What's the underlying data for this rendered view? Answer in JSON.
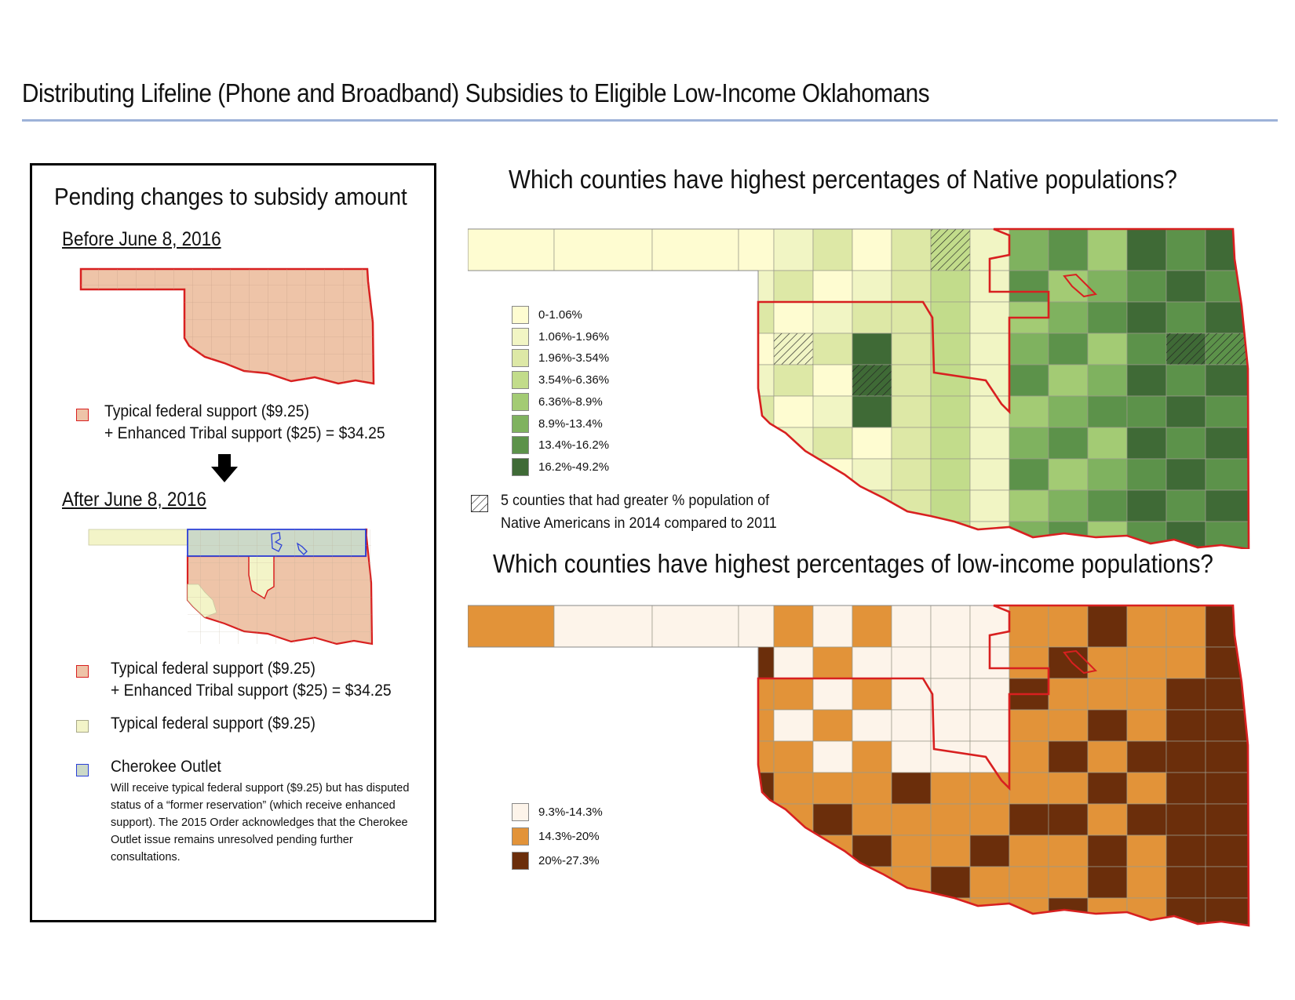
{
  "page_title": "Distributing Lifeline (Phone and Broadband) Subsidies to Eligible Low-Income Oklahomans",
  "colors": {
    "enhanced_fill": "#eec4a8",
    "enhanced_border": "#d82020",
    "typical_fill": "#f3f4c8",
    "outlet_fill": "#ccd9c8",
    "outlet_border": "#2a3fd8",
    "native_scale": [
      "#fefcd1",
      "#f1f5c4",
      "#dde8a6",
      "#c2dc8b",
      "#a3cb74",
      "#7fb25f",
      "#5c924a",
      "#3f6a36"
    ],
    "income_scale": [
      "#fdf4ea",
      "#e29339",
      "#6b2e0b"
    ]
  },
  "left_panel": {
    "title": "Pending changes to subsidy amount",
    "before": {
      "heading": "Before June 8, 2016",
      "legend_line1": "Typical federal support ($9.25)",
      "legend_line2": "+ Enhanced Tribal support ($25) = $34.25"
    },
    "arrow_icon": "down-arrow-icon",
    "after": {
      "heading": "After June 8, 2016",
      "legend": [
        {
          "line1": "Typical federal support ($9.25)",
          "line2": "+ Enhanced Tribal support ($25) = $34.25",
          "swatch": "enhanced"
        },
        {
          "line1": "Typical federal support ($9.25)",
          "line2": "",
          "swatch": "typical"
        },
        {
          "line1": "Cherokee Outlet",
          "line2": "",
          "swatch": "outlet"
        }
      ],
      "note": "Will receive typical federal support ($9.25) but has disputed status of a “former reservation” (which receive enhanced support).  The 2015 Order acknowledges that the Cherokee Outlet issue remains unresolved pending further consultations."
    }
  },
  "native_map": {
    "title": "Which counties have highest percentages of Native populations?",
    "legend": [
      "0-1.06%",
      "1.06%-1.96%",
      "1.96%-3.54%",
      "3.54%-6.36%",
      "6.36%-8.9%",
      "8.9%-13.4%",
      "13.4%-16.2%",
      "16.2%-49.2%"
    ],
    "hatch_line1": "5 counties that had greater % population of",
    "hatch_line2": "Native Americans in 2014 compared to 2011"
  },
  "income_map": {
    "title": "Which counties have highest percentages of low-income populations?",
    "legend": [
      "9.3%-14.3%",
      "14.3%-20%",
      "20%-27.3%"
    ]
  }
}
